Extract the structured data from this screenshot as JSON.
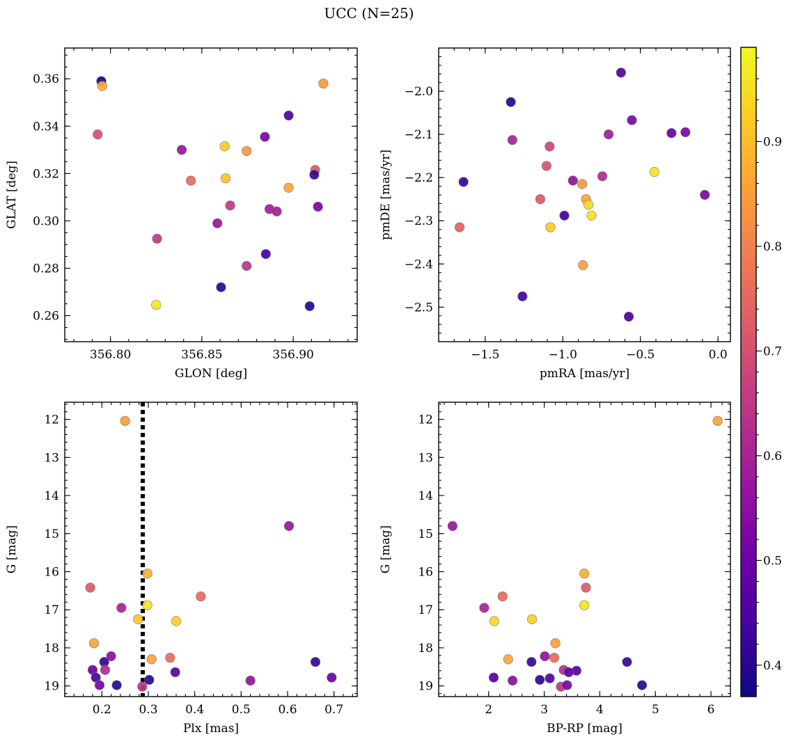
{
  "title": "UCC (N=25)",
  "colors": {
    "cmap": [
      "#0d0887",
      "#46039f",
      "#7201a8",
      "#9c179e",
      "#bd3786",
      "#d8576b",
      "#ed7953",
      "#fb9f3a",
      "#fdca26",
      "#f0f921"
    ],
    "threshold_line": "#000000",
    "marker_edge": "#777777"
  },
  "chart_data": [
    {
      "id": "glon-glat",
      "type": "scatter",
      "xlabel": "GLON [deg]",
      "ylabel": "GLAT [deg]",
      "xlim": [
        356.775,
        356.935
      ],
      "ylim": [
        0.249,
        0.373
      ],
      "xticks": [
        356.8,
        356.85,
        356.9
      ],
      "xtick_labels": [
        "356.80",
        "356.85",
        "356.90"
      ],
      "yticks": [
        0.26,
        0.28,
        0.3,
        0.32,
        0.34,
        0.36
      ],
      "ytick_labels": [
        "0.26",
        "0.28",
        "0.30",
        "0.32",
        "0.34",
        "0.36"
      ],
      "xminor_step": 0.01,
      "yminor_step": 0.005,
      "x": [
        356.795,
        356.7955,
        356.793,
        356.839,
        356.844,
        356.8625,
        356.863,
        356.8745,
        356.8845,
        356.8975,
        356.9165,
        356.8975,
        356.8655,
        356.8585,
        356.887,
        356.891,
        356.8255,
        356.912,
        356.9135,
        356.8745,
        356.885,
        356.8605,
        356.825,
        356.909,
        356.9115
      ],
      "y": [
        0.359,
        0.357,
        0.3365,
        0.33,
        0.317,
        0.3315,
        0.318,
        0.3295,
        0.3355,
        0.3445,
        0.358,
        0.314,
        0.3065,
        0.299,
        0.305,
        0.304,
        0.2925,
        0.3215,
        0.306,
        0.281,
        0.286,
        0.272,
        0.2645,
        0.264,
        0.3195
      ],
      "c": [
        0.38,
        0.87,
        0.7,
        0.57,
        0.76,
        0.92,
        0.91,
        0.84,
        0.52,
        0.45,
        0.84,
        0.86,
        0.65,
        0.57,
        0.59,
        0.59,
        0.65,
        0.72,
        0.52,
        0.64,
        0.44,
        0.41,
        0.96,
        0.4,
        0.42
      ]
    },
    {
      "id": "pmra-pmde",
      "type": "scatter",
      "xlabel": "pmRA [mas/yr]",
      "ylabel": "pmDE [mas/yr]",
      "xlim": [
        -1.8,
        0.08
      ],
      "ylim": [
        -2.58,
        -1.9
      ],
      "xticks": [
        -1.5,
        -1.0,
        -0.5,
        0.0
      ],
      "xtick_labels": [
        "−1.5",
        "−1.0",
        "−0.5",
        "0.0"
      ],
      "yticks": [
        -2.5,
        -2.4,
        -2.3,
        -2.2,
        -2.1,
        -2.0
      ],
      "ytick_labels": [
        "−2.5",
        "−2.4",
        "−2.3",
        "−2.2",
        "−2.1",
        "−2.0"
      ],
      "xminor_step": 0.1,
      "yminor_step": 0.02,
      "x": [
        -1.335,
        -1.64,
        -1.325,
        -1.085,
        -1.105,
        -1.145,
        -1.665,
        -1.08,
        -0.99,
        -0.935,
        -0.875,
        -0.85,
        -0.835,
        -0.815,
        -0.87,
        -0.745,
        -0.705,
        -0.625,
        -0.555,
        -0.41,
        -0.3,
        -0.21,
        -0.085,
        -1.26,
        -0.575
      ],
      "y": [
        -2.025,
        -2.21,
        -2.113,
        -2.128,
        -2.173,
        -2.25,
        -2.315,
        -2.315,
        -2.288,
        -2.207,
        -2.215,
        -2.25,
        -2.263,
        -2.288,
        -2.403,
        -2.197,
        -2.1,
        -1.957,
        -2.067,
        -2.187,
        -2.097,
        -2.095,
        -2.24,
        -2.475,
        -2.522
      ],
      "c": [
        0.4,
        0.42,
        0.6,
        0.68,
        0.71,
        0.72,
        0.74,
        0.92,
        0.43,
        0.56,
        0.84,
        0.86,
        0.94,
        0.95,
        0.85,
        0.62,
        0.58,
        0.46,
        0.52,
        0.96,
        0.5,
        0.52,
        0.52,
        0.44,
        0.45
      ]
    },
    {
      "id": "plx-g",
      "type": "scatter",
      "xlabel": "Plx [mas]",
      "ylabel": "G [mag]",
      "xlim": [
        0.12,
        0.75
      ],
      "ylim": [
        19.28,
        11.55
      ],
      "xticks": [
        0.2,
        0.3,
        0.4,
        0.5,
        0.6,
        0.7
      ],
      "xtick_labels": [
        "0.2",
        "0.3",
        "0.4",
        "0.5",
        "0.6",
        "0.7"
      ],
      "yticks": [
        12,
        13,
        14,
        15,
        16,
        17,
        18,
        19
      ],
      "ytick_labels": [
        "12",
        "13",
        "14",
        "15",
        "16",
        "17",
        "18",
        "19"
      ],
      "xminor_step": 0.02,
      "yminor_step": 0.2,
      "vline": 0.288,
      "x": [
        0.25,
        0.603,
        0.175,
        0.298,
        0.413,
        0.242,
        0.298,
        0.278,
        0.36,
        0.183,
        0.307,
        0.347,
        0.22,
        0.205,
        0.18,
        0.207,
        0.358,
        0.66,
        0.187,
        0.195,
        0.302,
        0.232,
        0.287,
        0.52,
        0.695
      ],
      "y": [
        12.04,
        14.8,
        16.42,
        16.05,
        16.65,
        16.95,
        16.88,
        17.25,
        17.3,
        17.88,
        18.3,
        18.26,
        18.22,
        18.37,
        18.58,
        18.58,
        18.64,
        18.37,
        18.78,
        18.98,
        18.84,
        18.98,
        19.02,
        18.86,
        18.78
      ],
      "c": [
        0.85,
        0.57,
        0.72,
        0.88,
        0.76,
        0.6,
        0.96,
        0.92,
        0.93,
        0.86,
        0.86,
        0.76,
        0.55,
        0.42,
        0.5,
        0.62,
        0.47,
        0.42,
        0.45,
        0.52,
        0.41,
        0.4,
        0.64,
        0.56,
        0.5
      ]
    },
    {
      "id": "bprp-g",
      "type": "scatter",
      "xlabel": "BP-RP [mag]",
      "ylabel": "G [mag]",
      "xlim": [
        1.1,
        6.35
      ],
      "ylim": [
        19.28,
        11.55
      ],
      "xticks": [
        2,
        3,
        4,
        5,
        6
      ],
      "xtick_labels": [
        "2",
        "3",
        "4",
        "5",
        "6"
      ],
      "yticks": [
        12,
        13,
        14,
        15,
        16,
        17,
        18,
        19
      ],
      "ytick_labels": [
        "12",
        "13",
        "14",
        "15",
        "16",
        "17",
        "18",
        "19"
      ],
      "xminor_step": 0.2,
      "yminor_step": 0.2,
      "x": [
        6.12,
        1.35,
        3.72,
        3.75,
        2.25,
        1.92,
        3.72,
        2.1,
        2.78,
        3.2,
        2.35,
        3.18,
        3.01,
        2.77,
        4.49,
        3.35,
        3.58,
        3.44,
        2.09,
        2.43,
        2.92,
        3.1,
        3.3,
        3.41,
        4.76
      ],
      "y": [
        12.04,
        14.8,
        16.05,
        16.42,
        16.65,
        16.95,
        16.88,
        17.3,
        17.25,
        17.88,
        18.3,
        18.26,
        18.22,
        18.37,
        18.37,
        18.58,
        18.6,
        18.64,
        18.78,
        18.86,
        18.84,
        18.8,
        19.02,
        18.98,
        18.98
      ],
      "c": [
        0.86,
        0.57,
        0.88,
        0.72,
        0.76,
        0.6,
        0.96,
        0.94,
        0.93,
        0.85,
        0.86,
        0.76,
        0.56,
        0.42,
        0.42,
        0.62,
        0.47,
        0.48,
        0.46,
        0.55,
        0.41,
        0.45,
        0.64,
        0.52,
        0.4
      ]
    }
  ],
  "colorbar": {
    "vmin": 0.37,
    "vmax": 0.99,
    "ticks": [
      0.4,
      0.5,
      0.6,
      0.7,
      0.8,
      0.9
    ],
    "tick_labels": [
      "0.4",
      "0.5",
      "0.6",
      "0.7",
      "0.8",
      "0.9"
    ]
  }
}
